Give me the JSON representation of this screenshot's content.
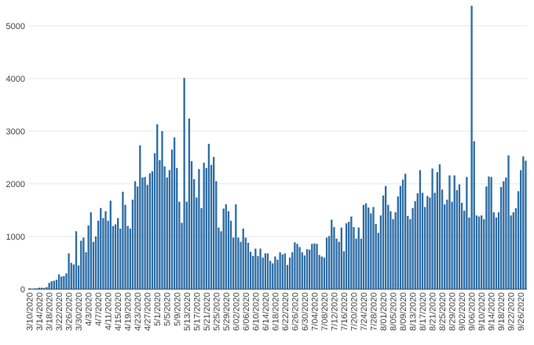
{
  "chart_data": {
    "type": "bar",
    "title": "",
    "xlabel": "",
    "ylabel": "",
    "ylim": [
      0,
      5400
    ],
    "yticks": [
      0,
      1000,
      2000,
      3000,
      4000,
      5000
    ],
    "x_start": "3/10/2020",
    "x_tick_labels": [
      "3/10/2020",
      "3/14/2020",
      "3/18/2020",
      "3/22/2020",
      "3/26/2020",
      "3/30/2020",
      "4/3/2020",
      "4/7/2020",
      "4/11/2020",
      "4/15/2020",
      "4/19/2020",
      "4/23/2020",
      "4/27/2020",
      "5/1/2020",
      "5/5/2020",
      "5/9/2020",
      "5/13/2020",
      "5/17/2020",
      "5/21/2020",
      "5/25/2020",
      "5/29/2020",
      "6/02/2020",
      "6/06/2020",
      "6/10/2020",
      "6/14/2020",
      "6/18/2020",
      "6/22/2020",
      "6/26/2020",
      "6/30/2020",
      "7/04/2020",
      "7/08/2020",
      "7/12/2020",
      "7/16/2020",
      "7/20/2020",
      "7/24/2020",
      "7/28/2020",
      "8/01/2020",
      "8/05/2020",
      "8/09/2020",
      "8/13/2020",
      "8/17/2020",
      "8/21/2020",
      "8/25/2020",
      "8/29/2020",
      "9/02/2020",
      "9/06/2020",
      "9/10/2020",
      "9/14/2020",
      "9/18/2020",
      "9/22/2020",
      "9/26/2020"
    ],
    "grid": true,
    "colors": {
      "bar": "#2e6ea6",
      "grid": "#e6e6e6",
      "axis": "#444444"
    },
    "values": [
      20,
      10,
      15,
      20,
      30,
      30,
      25,
      40,
      120,
      150,
      160,
      180,
      280,
      240,
      250,
      300,
      680,
      500,
      470,
      1100,
      450,
      920,
      980,
      700,
      1210,
      1460,
      900,
      1000,
      1300,
      1540,
      1350,
      1480,
      1300,
      1680,
      1200,
      1230,
      1350,
      1150,
      1850,
      1600,
      1200,
      1150,
      1700,
      2050,
      1950,
      2730,
      2120,
      2130,
      1980,
      2200,
      2240,
      2580,
      3130,
      2450,
      3000,
      2330,
      2120,
      2260,
      2650,
      2880,
      2300,
      1660,
      1260,
      4010,
      1660,
      3240,
      2430,
      2090,
      1740,
      2280,
      1540,
      2400,
      2300,
      2760,
      2360,
      2510,
      2050,
      1170,
      1100,
      1530,
      1610,
      1480,
      1300,
      980,
      1610,
      980,
      900,
      1150,
      980,
      880,
      710,
      630,
      770,
      630,
      770,
      600,
      680,
      680,
      540,
      490,
      620,
      560,
      700,
      660,
      680,
      460,
      600,
      700,
      890,
      860,
      800,
      700,
      640,
      760,
      750,
      860,
      870,
      860,
      650,
      620,
      600,
      980,
      1010,
      1320,
      1180,
      960,
      900,
      1170,
      720,
      1250,
      1280,
      1380,
      1180,
      960,
      1170,
      960,
      1600,
      1630,
      1550,
      1440,
      1560,
      1240,
      1070,
      1400,
      1780,
      1960,
      1600,
      1480,
      1330,
      1460,
      1760,
      1960,
      2080,
      2190,
      1390,
      1330,
      1540,
      1670,
      1820,
      2260,
      1830,
      1560,
      1770,
      1740,
      2290,
      1830,
      2220,
      2370,
      1890,
      1610,
      1700,
      2160,
      1660,
      2160,
      1880,
      1990,
      1640,
      1490,
      2130,
      1360,
      5380,
      2810,
      1400,
      1380,
      1400,
      1330,
      1950,
      2140,
      2130,
      1460,
      1360,
      1460,
      1940,
      2050,
      2120,
      2540,
      1400,
      1460,
      1540,
      1860,
      2260,
      2520,
      2440
    ]
  }
}
